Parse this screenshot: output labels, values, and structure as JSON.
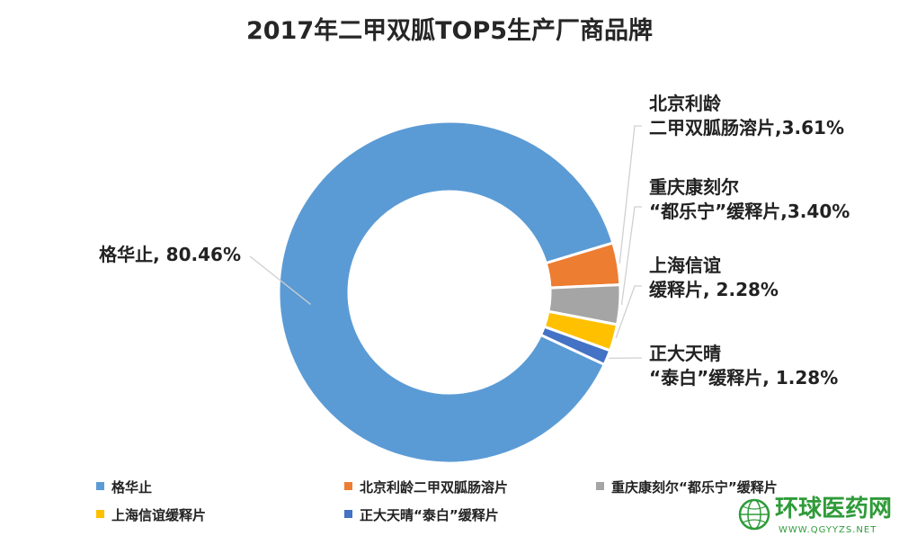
{
  "chart_data": {
    "type": "pie",
    "variant": "donut",
    "title": "2017年二甲双胍TOP5生产厂商品牌",
    "slices": [
      {
        "name": "格华止",
        "value": 80.46,
        "color": "#5b9bd5",
        "label_lines": [
          "格华止, 80.46%"
        ]
      },
      {
        "name": "北京利龄二甲双胍肠溶片",
        "value": 3.61,
        "color": "#ed7d31",
        "label_lines": [
          "北京利龄",
          "二甲双胍肠溶片,3.61%"
        ]
      },
      {
        "name": "重庆康刻尔“都乐宁”缓释片",
        "value": 3.4,
        "color": "#a5a5a5",
        "label_lines": [
          "重庆康刻尔",
          "“都乐宁”缓释片,3.40%"
        ]
      },
      {
        "name": "上海信谊缓释片",
        "value": 2.28,
        "color": "#ffc000",
        "label_lines": [
          "上海信谊",
          "缓释片, 2.28%"
        ]
      },
      {
        "name": "正大天晴“泰白”缓释片",
        "value": 1.28,
        "color": "#4472c4",
        "label_lines": [
          "正大天晴",
          "“泰白”缓释片, 1.28%"
        ]
      }
    ],
    "legend": {
      "placement": "bottom",
      "entries": [
        "格华止",
        "北京利龄二甲双胍肠溶片",
        "重庆康刻尔“都乐宁”缓释片",
        "上海信谊缓释片",
        "正大天晴“泰白”缓释片"
      ]
    }
  },
  "watermark": {
    "text": "环球医药网",
    "url": "WWW.QGYYZS.NET",
    "registered": "®",
    "color": "#2f9b39"
  }
}
